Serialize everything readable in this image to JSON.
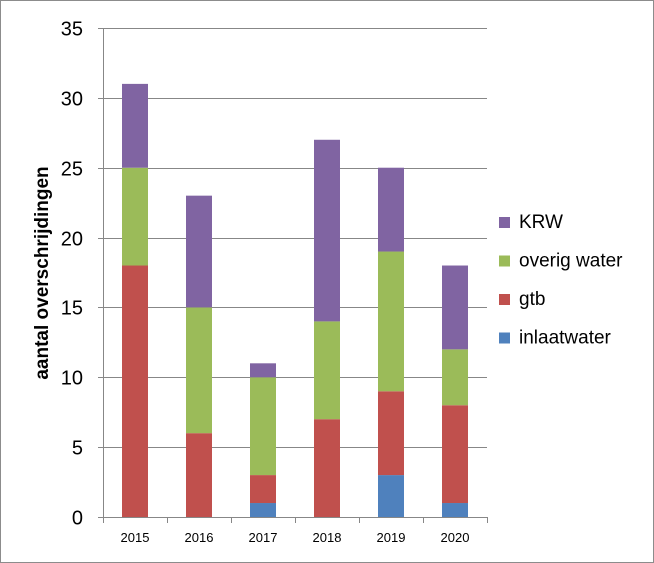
{
  "chart_data": {
    "type": "bar",
    "stacked": true,
    "categories": [
      "2015",
      "2016",
      "2017",
      "2018",
      "2019",
      "2020"
    ],
    "series": [
      {
        "name": "inlaatwater",
        "color": "#4f81bd",
        "values": [
          0,
          0,
          1,
          0,
          3,
          1
        ]
      },
      {
        "name": "gtb",
        "color": "#c0504d",
        "values": [
          18,
          6,
          2,
          7,
          6,
          7
        ]
      },
      {
        "name": "overig water",
        "color": "#9bbb59",
        "values": [
          7,
          9,
          7,
          7,
          10,
          4
        ]
      },
      {
        "name": "KRW",
        "color": "#8064a2",
        "values": [
          6,
          8,
          1,
          13,
          6,
          6
        ]
      }
    ],
    "title": "",
    "xlabel": "",
    "ylabel": "aantal overschrijdingen",
    "ylim": [
      0,
      35
    ],
    "yticks": [
      0,
      5,
      10,
      15,
      20,
      25,
      30,
      35
    ],
    "grid": true,
    "legend_position": "right"
  }
}
